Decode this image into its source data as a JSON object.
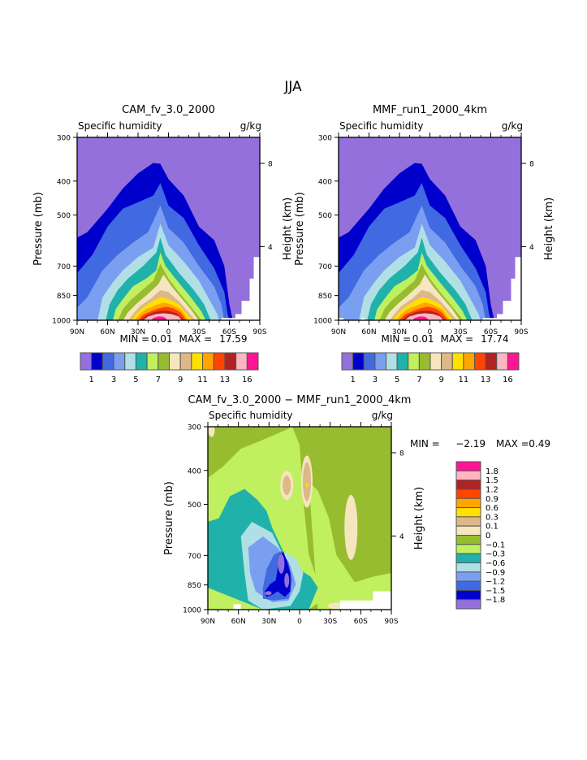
{
  "figure_title": "JJA",
  "chart_data": [
    {
      "type": "heatmap",
      "title": "CAM_fv_3.0_2000",
      "left_label": "Specific humidity",
      "right_label": "g/kg",
      "ylabel": "Pressure (mb)",
      "ylabel_right": "Height (km)",
      "x_ticks": [
        "90N",
        "60N",
        "30N",
        "0",
        "30S",
        "60S",
        "90S"
      ],
      "y_ticks": [
        "300",
        "400",
        "500",
        "700",
        "850",
        "1000"
      ],
      "y_ticks_right": [
        "8",
        "4"
      ],
      "xlim": [
        "90N",
        "90S"
      ],
      "ylim": [
        1000,
        300
      ],
      "stats": {
        "min_label": "MIN =",
        "min": "0.01",
        "max_label": "MAX =",
        "max": "17.59"
      },
      "levels": [
        "1",
        "3",
        "5",
        "7",
        "9",
        "11",
        "13",
        "16"
      ],
      "colors": [
        "#9370db",
        "#0000cd",
        "#4169e1",
        "#7b9ff0",
        "#b0e0e6",
        "#20b2aa",
        "#c0f060",
        "#98bc30",
        "#f5e6c0",
        "#deb887",
        "#ffe000",
        "#ffa500",
        "#ff4500",
        "#b22222",
        "#ffb6c1",
        "#ff1493"
      ],
      "peak_location": {
        "lat": "10N",
        "pressure": 1000
      }
    },
    {
      "type": "heatmap",
      "title": "MMF_run1_2000_4km",
      "left_label": "Specific humidity",
      "right_label": "g/kg",
      "ylabel": "Pressure (mb)",
      "ylabel_right": "Height (km)",
      "x_ticks": [
        "90N",
        "60N",
        "30N",
        "0",
        "30S",
        "60S",
        "90S"
      ],
      "y_ticks": [
        "300",
        "400",
        "500",
        "700",
        "850",
        "1000"
      ],
      "y_ticks_right": [
        "8",
        "4"
      ],
      "xlim": [
        "90N",
        "90S"
      ],
      "ylim": [
        1000,
        300
      ],
      "stats": {
        "min_label": "MIN =",
        "min": "0.01",
        "max_label": "MAX =",
        "max": "17.74"
      },
      "levels": [
        "1",
        "3",
        "5",
        "7",
        "9",
        "11",
        "13",
        "16"
      ],
      "colors": [
        "#9370db",
        "#0000cd",
        "#4169e1",
        "#7b9ff0",
        "#b0e0e6",
        "#20b2aa",
        "#c0f060",
        "#98bc30",
        "#f5e6c0",
        "#deb887",
        "#ffe000",
        "#ffa500",
        "#ff4500",
        "#b22222",
        "#ffb6c1",
        "#ff1493"
      ],
      "peak_location": {
        "lat": "10N",
        "pressure": 1000
      }
    },
    {
      "type": "heatmap",
      "title": "CAM_fv_3.0_2000 − MMF_run1_2000_4km",
      "left_label": "Specific humidity",
      "right_label": "g/kg",
      "ylabel": "Pressure (mb)",
      "ylabel_right": "Height (km)",
      "x_ticks": [
        "90N",
        "60N",
        "30N",
        "0",
        "30S",
        "60S",
        "90S"
      ],
      "y_ticks": [
        "300",
        "400",
        "500",
        "700",
        "850",
        "1000"
      ],
      "y_ticks_right": [
        "8",
        "4"
      ],
      "xlim": [
        "90N",
        "90S"
      ],
      "ylim": [
        1000,
        300
      ],
      "stats": {
        "min_label": "MIN =",
        "min": "−2.19",
        "max_label": "MAX =",
        "max": "0.49"
      },
      "levels": [
        "1.8",
        "1.5",
        "1.2",
        "0.9",
        "0.6",
        "0.3",
        "0.1",
        "0",
        "−0.1",
        "−0.3",
        "−0.6",
        "−0.9",
        "−1.2",
        "−1.5",
        "−1.8"
      ],
      "colors": [
        "#ff1493",
        "#ffb6c1",
        "#b22222",
        "#ff4500",
        "#ffa500",
        "#ffe000",
        "#deb887",
        "#f5e6c0",
        "#98bc30",
        "#c0f060",
        "#20b2aa",
        "#b0e0e6",
        "#7b9ff0",
        "#4169e1",
        "#0000cd",
        "#9370db"
      ],
      "min_location": {
        "lat": "15N",
        "pressure": 800
      }
    }
  ]
}
